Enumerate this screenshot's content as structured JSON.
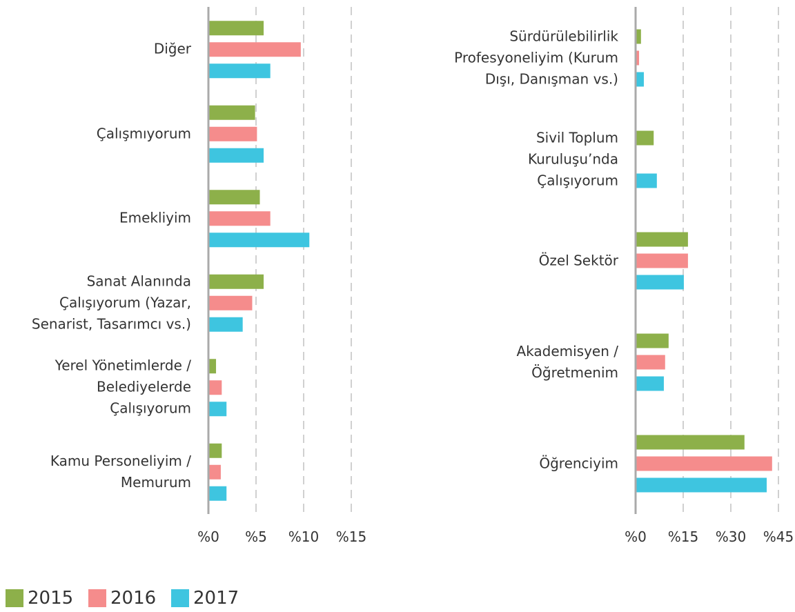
{
  "charts": [
    {
      "type": "bar",
      "orientation": "horizontal",
      "categories": [
        "Diğer",
        "Çalışmıyorum",
        "Emekliyim",
        "Sanat Alanında\nÇalışıyorum (Yazar,\nSenarist, Tasarımcı vs.)",
        "Yerel Yönetimlerde /\nBelediyelerde\nÇalışıyorum",
        "Kamu Personeliyim /\nMemurum"
      ],
      "series": [
        {
          "name": "2015",
          "color": "#8db04a",
          "values": [
            5.8,
            4.9,
            5.4,
            5.8,
            0.8,
            1.4
          ]
        },
        {
          "name": "2016",
          "color": "#f58c8c",
          "values": [
            9.7,
            5.1,
            6.5,
            4.6,
            1.4,
            1.3
          ]
        },
        {
          "name": "2017",
          "color": "#3ec5e0",
          "values": [
            6.5,
            5.8,
            10.6,
            3.6,
            1.9,
            1.9
          ]
        }
      ],
      "xlim": [
        0,
        15
      ],
      "xticks": [
        {
          "value": 0,
          "label": "%0"
        },
        {
          "value": 5,
          "label": "%5"
        },
        {
          "value": 10,
          "label": "%10"
        },
        {
          "value": 15,
          "label": "%15"
        }
      ],
      "grid": true
    },
    {
      "type": "bar",
      "orientation": "horizontal",
      "categories": [
        "Sürdürülebilirlik\nProfesyoneliyim (Kurum\nDışı, Danışman vs.)",
        "Sivil Toplum\nKuruluşu’nda\nÇalışıyorum",
        "Özel Sektör",
        "Akademisyen /\nÖğretmenim",
        "Öğrenciyim"
      ],
      "series": [
        {
          "color": "#8db04a",
          "values": [
            1.7,
            5.7,
            16.5,
            10.4,
            34.3
          ]
        },
        {
          "color": "#f58c8c",
          "values": [
            1.1,
            null,
            16.5,
            9.3,
            43
          ]
        },
        {
          "color": "#3ec5e0",
          "values": [
            2.6,
            6.7,
            15.2,
            8.9,
            41.3
          ]
        }
      ],
      "xlim": [
        0,
        45
      ],
      "xticks": [
        {
          "value": 0,
          "label": "%0"
        },
        {
          "value": 15,
          "label": "%15"
        },
        {
          "value": 30,
          "label": "%30"
        },
        {
          "value": 45,
          "label": "%45"
        }
      ],
      "grid": true
    }
  ]
}
